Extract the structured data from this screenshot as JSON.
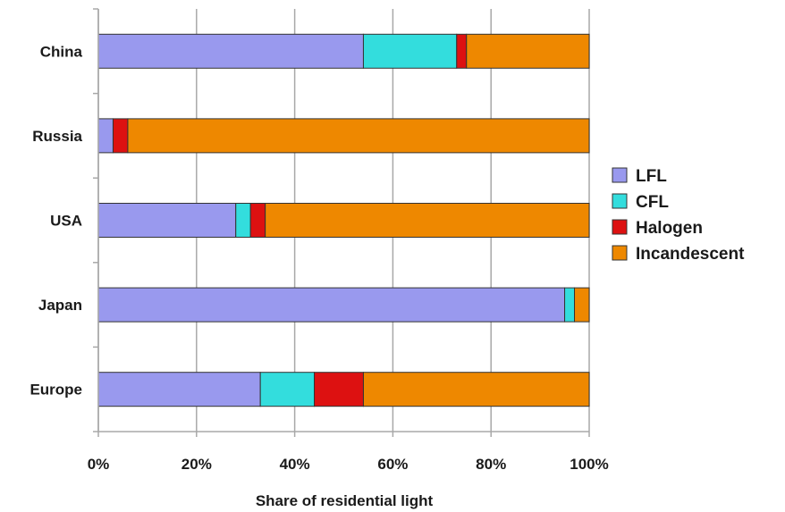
{
  "chart_data": {
    "type": "bar",
    "orientation": "horizontal",
    "stacked": true,
    "percent_stacked": true,
    "title": "",
    "xlabel": "Share of residential light",
    "ylabel": "",
    "xlim": [
      0,
      100
    ],
    "x_ticks": [
      "0%",
      "20%",
      "40%",
      "60%",
      "80%",
      "100%"
    ],
    "categories": [
      "China",
      "Russia",
      "USA",
      "Japan",
      "Europe"
    ],
    "series": [
      {
        "name": "LFL",
        "color": "#9999ee",
        "values": [
          54,
          3,
          28,
          95,
          33
        ]
      },
      {
        "name": "CFL",
        "color": "#33dddd",
        "values": [
          19,
          0,
          3,
          2,
          11
        ]
      },
      {
        "name": "Halogen",
        "color": "#dd1111",
        "values": [
          2,
          3,
          3,
          0,
          10
        ]
      },
      {
        "name": "Incandescent",
        "color": "#ee8800",
        "values": [
          25,
          94,
          66,
          3,
          46
        ]
      }
    ],
    "legend_position": "right",
    "grid": {
      "vertical": true,
      "horizontal": false
    }
  }
}
